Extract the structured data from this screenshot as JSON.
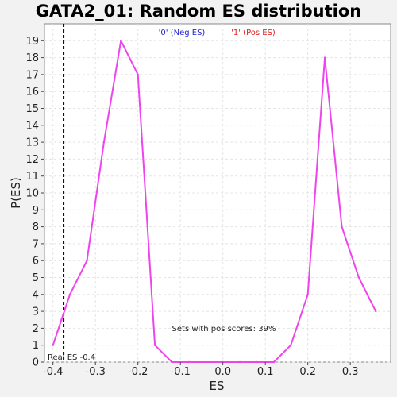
{
  "chart_data": {
    "type": "line",
    "title": "GATA2_01: Random ES distribution",
    "xlabel": "ES",
    "ylabel": "P(ES)",
    "xlim": [
      -0.42,
      0.395
    ],
    "ylim": [
      0,
      20
    ],
    "x_ticks": [
      -0.4,
      -0.3,
      -0.2,
      -0.1,
      0.0,
      0.1,
      0.2,
      0.3
    ],
    "x_tick_labels": [
      "-0.4",
      "-0.3",
      "-0.2",
      "-0.1",
      "0.0",
      "0.1",
      "0.2",
      "0.3"
    ],
    "y_ticks": [
      0,
      1,
      2,
      3,
      4,
      5,
      6,
      7,
      8,
      9,
      10,
      11,
      12,
      13,
      14,
      15,
      16,
      17,
      18,
      19
    ],
    "y_tick_labels": [
      "0",
      "1",
      "2",
      "3",
      "4",
      "5",
      "6",
      "7",
      "8",
      "9",
      "10",
      "11",
      "12",
      "13",
      "14",
      "15",
      "16",
      "17",
      "18",
      "19"
    ],
    "grid": true,
    "series": [
      {
        "color": "#ee44ee",
        "x": [
          -0.4,
          -0.38,
          -0.36,
          -0.32,
          -0.28,
          -0.24,
          -0.2,
          -0.16,
          -0.12,
          -0.08,
          -0.04,
          0.0,
          0.04,
          0.08,
          0.12,
          0.16,
          0.2,
          0.24,
          0.28,
          0.32,
          0.36
        ],
        "y": [
          1,
          2.5,
          4,
          6,
          13,
          19,
          17,
          1,
          0,
          0,
          0,
          0,
          0,
          0,
          0,
          1,
          4,
          18,
          8,
          5,
          3
        ]
      }
    ],
    "legend": {
      "placement": "top-center",
      "entries": [
        {
          "label": "'0' (Neg ES)",
          "color": "#2222cc"
        },
        {
          "label": "'1' (Pos ES)",
          "color": "#dd2222"
        }
      ]
    },
    "real_es": {
      "x": -0.375,
      "label": "Real ES -0.4",
      "color": "#000000"
    },
    "annotation": "Sets with pos scores: 39%"
  }
}
